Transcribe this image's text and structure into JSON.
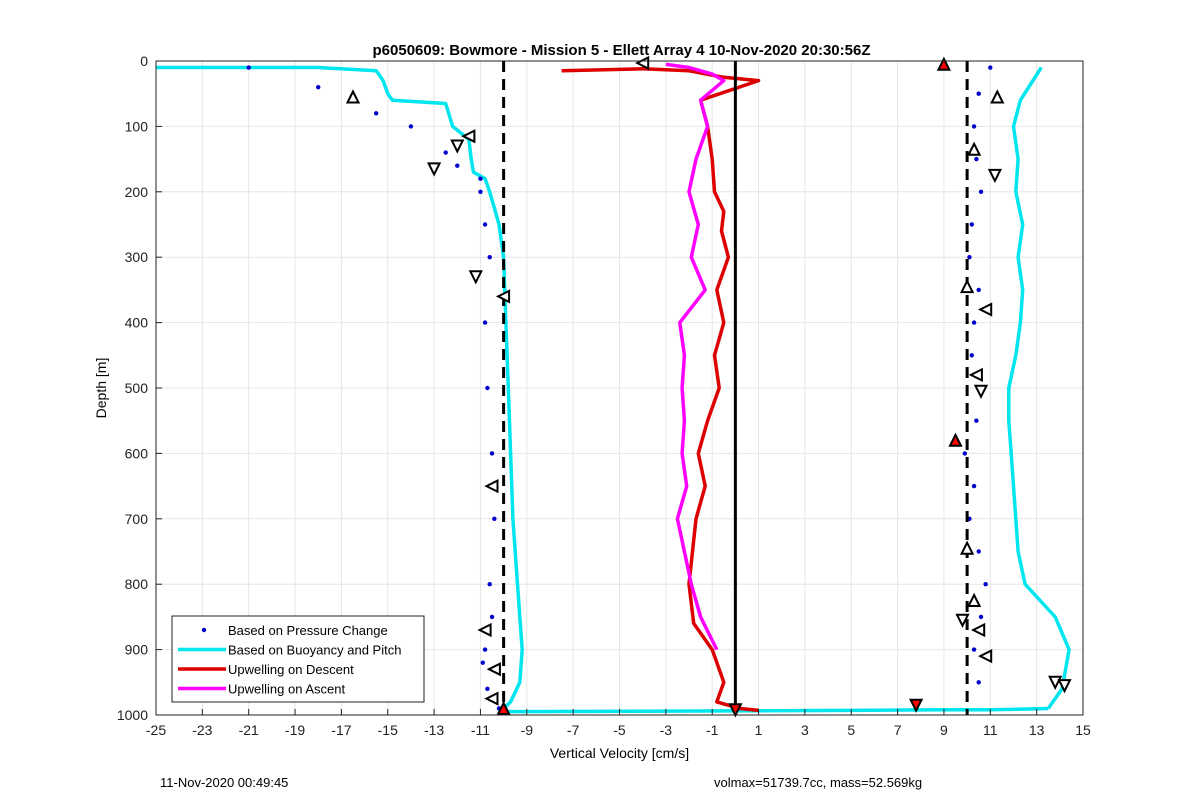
{
  "chart_data": {
    "type": "line",
    "title": "p6050609: Bowmore - Mission 5 - Ellett Array 4 10-Nov-2020 20:30:56Z",
    "xlabel": "Vertical Velocity [cm/s]",
    "ylabel": "Depth [m]",
    "xlim": [
      -25,
      15
    ],
    "ylim": [
      0,
      1000
    ],
    "y_reversed": true,
    "grid": true,
    "legend_position": "bottom-left",
    "xticks": [
      "-25",
      "-23",
      "-21",
      "-19",
      "-17",
      "-15",
      "-13",
      "-11",
      "-9",
      "-7",
      "-5",
      "-3",
      "-1",
      "1",
      "3",
      "5",
      "7",
      "9",
      "11",
      "13",
      "15"
    ],
    "yticks": [
      "0",
      "100",
      "200",
      "300",
      "400",
      "500",
      "600",
      "700",
      "800",
      "900",
      "1000"
    ],
    "reference_lines": [
      {
        "x": -10,
        "style": "dashed",
        "color": "#000000"
      },
      {
        "x": 10,
        "style": "dashed",
        "color": "#000000"
      },
      {
        "x": 0,
        "style": "solid",
        "color": "#000000"
      }
    ],
    "series": [
      {
        "name": "Based on Pressure Change",
        "style": "dots",
        "color": "#0000cc",
        "groups": [
          {
            "x": [
              -21,
              -18,
              -16.5,
              -15.5,
              -14,
              -12.5,
              -12,
              -11,
              -11,
              -10.8,
              -10.6,
              -10.8,
              -10.7,
              -10.5,
              -10.4,
              -10.6,
              -10.5,
              -10.8,
              -10.9,
              -10.7,
              -10.2
            ],
            "y": [
              10,
              40,
              60,
              80,
              100,
              140,
              160,
              180,
              200,
              250,
              300,
              400,
              500,
              600,
              700,
              800,
              850,
              900,
              920,
              960,
              990
            ]
          },
          {
            "x": [
              11,
              10.5,
              10.3,
              10.4,
              10.6,
              10.2,
              10.1,
              10.5,
              10.3,
              10.2,
              10.6,
              10.4,
              9.9,
              10.3,
              10.1,
              10.5,
              10.8,
              10.6,
              10.3,
              10.5
            ],
            "y": [
              10,
              50,
              100,
              150,
              200,
              250,
              300,
              350,
              400,
              450,
              500,
              550,
              600,
              650,
              700,
              750,
              800,
              850,
              900,
              950
            ]
          }
        ]
      },
      {
        "name": "Based on Buoyancy and Pitch",
        "style": "line",
        "color": "#00e5ee",
        "groups": [
          {
            "x": [
              -25,
              -18,
              -15.5,
              -15.2,
              -15,
              -14.8,
              -12.5,
              -12.2,
              -11.5,
              -11.4,
              -11.3,
              -10.8,
              -10.6,
              -10.2,
              -10,
              -9.9,
              -9.8,
              -9.7,
              -9.6,
              -9.5,
              -9.4,
              -9.3,
              -9.2,
              -9.3,
              -9.7,
              -10
            ],
            "y": [
              10,
              10,
              15,
              30,
              50,
              60,
              65,
              100,
              120,
              150,
              170,
              180,
              200,
              250,
              300,
              400,
              500,
              600,
              700,
              750,
              800,
              850,
              900,
              950,
              980,
              990
            ]
          },
          {
            "x": [
              -10,
              5,
              9,
              11,
              13.5
            ],
            "y": [
              995,
              993,
              992,
              992,
              990
            ]
          },
          {
            "x": [
              13.2,
              12.3,
              12,
              12.2,
              12.1,
              12.4,
              12.2,
              12.4,
              12.3,
              12.1,
              11.8,
              11.8,
              11.9,
              12,
              12.1,
              12.2,
              12.5,
              13.8,
              14.4,
              14.1,
              13.5
            ],
            "y": [
              10,
              60,
              100,
              150,
              200,
              250,
              300,
              350,
              400,
              450,
              500,
              550,
              600,
              650,
              700,
              750,
              800,
              850,
              900,
              960,
              990
            ]
          }
        ]
      },
      {
        "name": "Upwelling on Descent",
        "style": "line",
        "color": "#dd0000",
        "groups": [
          {
            "x": [
              -7.5,
              -4,
              -2,
              -0.5,
              1,
              -1.5,
              -1.2,
              -1,
              -0.9,
              -0.5,
              -0.6,
              -0.3,
              -0.8,
              -0.5,
              -0.9,
              -0.7,
              -1.2,
              -1.6,
              -1.3,
              -1.7,
              -2,
              -1.8,
              -1,
              -0.5,
              -0.8,
              0.2,
              1
            ],
            "y": [
              15,
              12,
              15,
              25,
              30,
              60,
              100,
              150,
              200,
              230,
              260,
              300,
              350,
              400,
              450,
              500,
              550,
              600,
              650,
              700,
              800,
              860,
              900,
              950,
              980,
              990,
              993
            ]
          }
        ]
      },
      {
        "name": "Upwelling on Ascent",
        "style": "line",
        "color": "#ff00ff",
        "groups": [
          {
            "x": [
              -3,
              -2,
              -1,
              -0.5,
              -1.5,
              -1.2,
              -1.7,
              -2,
              -1.6,
              -1.9,
              -1.3,
              -2.4,
              -2.2,
              -2.3,
              -2.2,
              -2.3,
              -2.1,
              -2.5,
              -2.2,
              -1.9,
              -1.5,
              -0.8
            ],
            "y": [
              5,
              10,
              20,
              30,
              60,
              100,
              150,
              200,
              250,
              300,
              350,
              400,
              450,
              500,
              550,
              600,
              650,
              700,
              750,
              800,
              850,
              900
            ]
          }
        ]
      }
    ],
    "markers": [
      {
        "shape": "left-triangle",
        "color": "#000000",
        "fill": "#ffffff",
        "points": [
          [
            -4,
            3
          ],
          [
            -11.5,
            115
          ],
          [
            -10,
            360
          ],
          [
            -10.5,
            650
          ],
          [
            -10.8,
            870
          ],
          [
            -10.4,
            930
          ],
          [
            -10.5,
            975
          ],
          [
            10.8,
            380
          ],
          [
            10.4,
            480
          ],
          [
            10.5,
            870
          ],
          [
            10.8,
            910
          ]
        ]
      },
      {
        "shape": "up-triangle",
        "color": "#000000",
        "fill": "#ffffff",
        "points": [
          [
            -16.5,
            55
          ],
          [
            11.3,
            55
          ],
          [
            10.3,
            135
          ],
          [
            10,
            345
          ],
          [
            10,
            745
          ],
          [
            10.3,
            825
          ]
        ]
      },
      {
        "shape": "down-triangle",
        "color": "#000000",
        "fill": "#ffffff",
        "points": [
          [
            -13,
            165
          ],
          [
            -12,
            130
          ],
          [
            -11.2,
            330
          ],
          [
            11.2,
            175
          ],
          [
            10.6,
            505
          ],
          [
            9.8,
            855
          ],
          [
            13.8,
            950
          ],
          [
            14.2,
            955
          ]
        ]
      },
      {
        "shape": "up-triangle",
        "color": "#000000",
        "fill": "#ff0000",
        "points": [
          [
            9,
            5
          ],
          [
            9.5,
            580
          ],
          [
            -10,
            990
          ]
        ]
      },
      {
        "shape": "down-triangle",
        "color": "#000000",
        "fill": "#ff0000",
        "points": [
          [
            7.8,
            985
          ],
          [
            0,
            992
          ]
        ]
      }
    ]
  },
  "footer": {
    "left": "11-Nov-2020 00:49:45",
    "right": "volmax=51739.7cc, mass=52.569kg"
  }
}
